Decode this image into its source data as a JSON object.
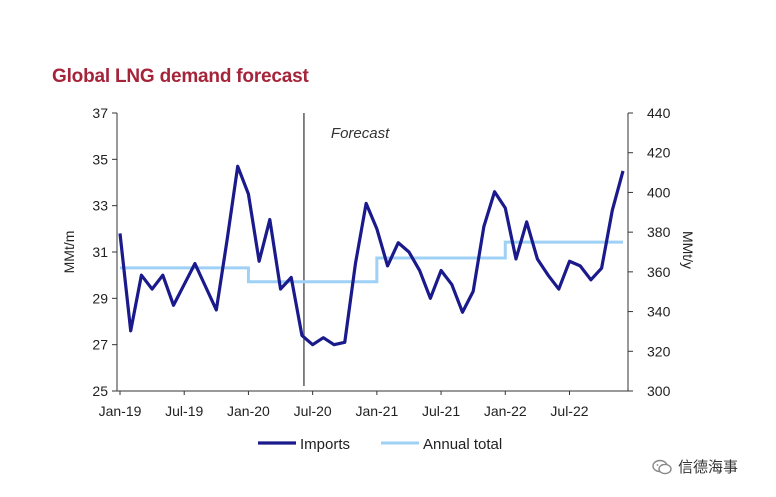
{
  "header": {
    "title": "Global LNG demand forecast"
  },
  "watermark": {
    "text": "信德海事",
    "icon": "wechat-icon"
  },
  "chart_data": {
    "type": "line",
    "title": "Global LNG demand forecast",
    "ylabel": "MMt/m",
    "y2label": "MMt/y",
    "ylim": [
      25,
      37
    ],
    "y2lim": [
      300,
      440
    ],
    "yticks": [
      25,
      27,
      29,
      31,
      33,
      35,
      37
    ],
    "y2ticks": [
      300,
      320,
      340,
      360,
      380,
      400,
      420,
      440
    ],
    "x": [
      "Jan-19",
      "Feb-19",
      "Mar-19",
      "Apr-19",
      "May-19",
      "Jun-19",
      "Jul-19",
      "Aug-19",
      "Sep-19",
      "Oct-19",
      "Nov-19",
      "Dec-19",
      "Jan-20",
      "Feb-20",
      "Mar-20",
      "Apr-20",
      "May-20",
      "Jun-20",
      "Jul-20",
      "Aug-20",
      "Sep-20",
      "Oct-20",
      "Nov-20",
      "Dec-20",
      "Jan-21",
      "Feb-21",
      "Mar-21",
      "Apr-21",
      "May-21",
      "Jun-21",
      "Jul-21",
      "Aug-21",
      "Sep-21",
      "Oct-21",
      "Nov-21",
      "Dec-21",
      "Jan-22",
      "Feb-22",
      "Mar-22",
      "Apr-22",
      "May-22",
      "Jun-22",
      "Jul-22",
      "Aug-22",
      "Sep-22",
      "Oct-22",
      "Nov-22",
      "Dec-22"
    ],
    "xticklabels": [
      "Jan-19",
      "Jul-19",
      "Jan-20",
      "Jul-20",
      "Jan-21",
      "Jul-21",
      "Jan-22",
      "Jul-22"
    ],
    "forecast_start": "Jun-20",
    "annotation": "Forecast",
    "legend_position": "bottom",
    "grid": false,
    "series": [
      {
        "name": "Imports",
        "axis": "left",
        "color": "#1a1a8c",
        "values": [
          31.8,
          27.6,
          30.0,
          29.4,
          30.0,
          28.7,
          29.6,
          30.5,
          29.5,
          28.5,
          31.5,
          34.7,
          33.5,
          30.6,
          32.4,
          29.4,
          29.9,
          27.4,
          27.0,
          27.3,
          27.0,
          27.1,
          30.5,
          33.1,
          32.0,
          30.4,
          31.4,
          31.0,
          30.2,
          29.0,
          30.2,
          29.6,
          28.4,
          29.3,
          32.1,
          33.6,
          32.9,
          30.7,
          32.3,
          30.7,
          30.0,
          29.4,
          30.6,
          30.4,
          29.8,
          30.3,
          32.8,
          34.5
        ]
      },
      {
        "name": "Annual total",
        "axis": "right",
        "color": "#9fd0f5",
        "values": [
          362,
          362,
          362,
          362,
          362,
          362,
          362,
          362,
          362,
          362,
          362,
          362,
          355,
          355,
          355,
          355,
          355,
          355,
          355,
          355,
          355,
          355,
          355,
          355,
          367,
          367,
          367,
          367,
          367,
          367,
          367,
          367,
          367,
          367,
          367,
          367,
          375,
          375,
          375,
          375,
          375,
          375,
          375,
          375,
          375,
          375,
          375,
          375
        ]
      }
    ]
  }
}
